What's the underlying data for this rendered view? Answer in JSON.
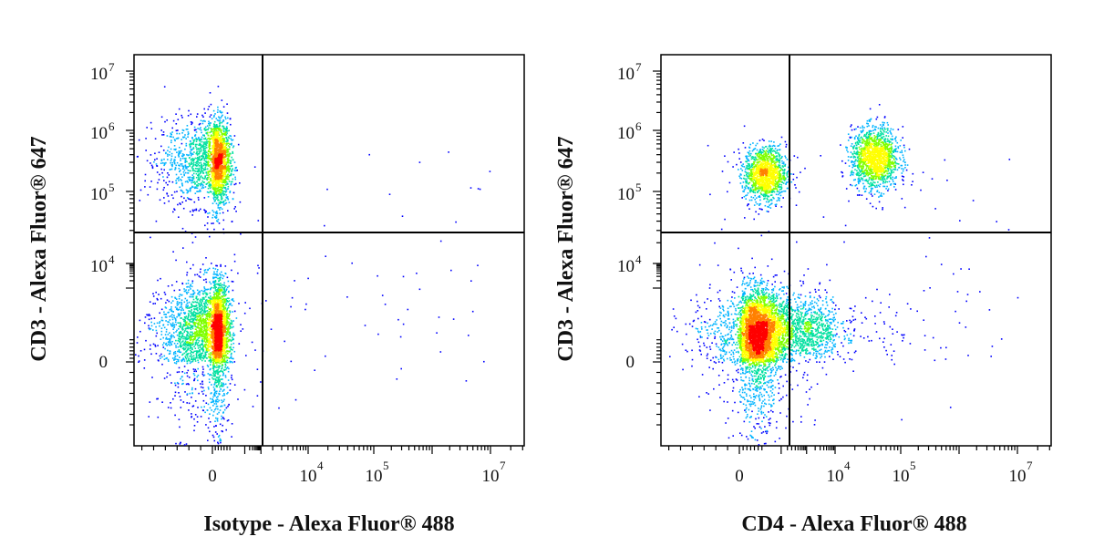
{
  "chart_data": [
    {
      "type": "scatter",
      "title": "",
      "xlabel": "Isotype - Alexa Fluor® 488",
      "ylabel": "CD3 - Alexa Fluor® 647",
      "x_ticks": [
        {
          "base": "0",
          "exp": "",
          "value": 0
        },
        {
          "base": "10",
          "exp": "4",
          "value": 4
        },
        {
          "base": "10",
          "exp": "5",
          "value": 5
        },
        {
          "base": "10",
          "exp": "7",
          "value": 7
        }
      ],
      "y_ticks": [
        {
          "base": "0",
          "exp": "",
          "value": 0
        },
        {
          "base": "10",
          "exp": "4",
          "value": 4
        },
        {
          "base": "10",
          "exp": "5",
          "value": 5
        },
        {
          "base": "10",
          "exp": "6",
          "value": 6
        },
        {
          "base": "10",
          "exp": "7",
          "value": 7
        }
      ],
      "x_scale": "biexponential",
      "y_scale": "biexponential",
      "xlim_decades": [
        -1.2,
        7.5
      ],
      "ylim_decades": [
        -1.2,
        7.2
      ],
      "gate_x_decade": 3.1,
      "gate_y_decade": 4.45,
      "colormap": [
        "#0000ff",
        "#00b4ff",
        "#00e0a0",
        "#80ff00",
        "#ffff00",
        "#ff8000",
        "#ff0000"
      ],
      "populations": [
        {
          "cx": 0.15,
          "cy": 5.5,
          "sx": 0.45,
          "sy": 0.35,
          "n": 2400
        },
        {
          "cx": 0.1,
          "cy": 1.2,
          "sx": 0.45,
          "sy": 1.0,
          "n": 3600
        }
      ],
      "sparse_events": 120
    },
    {
      "type": "scatter",
      "title": "",
      "xlabel": "CD4 - Alexa Fluor® 488",
      "ylabel": "CD3 - Alexa Fluor® 647",
      "x_ticks": [
        {
          "base": "0",
          "exp": "",
          "value": 0
        },
        {
          "base": "10",
          "exp": "4",
          "value": 4
        },
        {
          "base": "10",
          "exp": "5",
          "value": 5
        },
        {
          "base": "10",
          "exp": "7",
          "value": 7
        }
      ],
      "y_ticks": [
        {
          "base": "0",
          "exp": "",
          "value": 0
        },
        {
          "base": "10",
          "exp": "4",
          "value": 4
        },
        {
          "base": "10",
          "exp": "5",
          "value": 5
        },
        {
          "base": "10",
          "exp": "6",
          "value": 6
        },
        {
          "base": "10",
          "exp": "7",
          "value": 7
        }
      ],
      "x_scale": "biexponential",
      "y_scale": "biexponential",
      "xlim_decades": [
        -1.2,
        7.5
      ],
      "ylim_decades": [
        -1.2,
        7.2
      ],
      "gate_x_decade": 2.4,
      "gate_y_decade": 4.45,
      "colormap": [
        "#0000ff",
        "#00b4ff",
        "#00e0a0",
        "#80ff00",
        "#ffff00",
        "#ff8000",
        "#ff0000"
      ],
      "populations": [
        {
          "cx": 1.2,
          "cy": 5.3,
          "sx": 0.5,
          "sy": 0.22,
          "n": 1300
        },
        {
          "cx": 4.6,
          "cy": 5.55,
          "sx": 0.18,
          "sy": 0.25,
          "n": 1500
        },
        {
          "cx": 0.8,
          "cy": 1.1,
          "sx": 0.6,
          "sy": 0.9,
          "n": 3800
        },
        {
          "cx": 2.7,
          "cy": 1.3,
          "sx": 0.9,
          "sy": 0.7,
          "n": 1300
        }
      ],
      "sparse_events": 150
    }
  ]
}
